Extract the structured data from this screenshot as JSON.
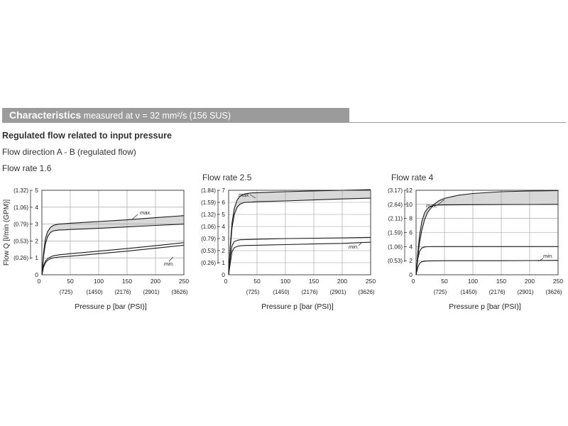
{
  "section": {
    "title_strong": "Characteristics",
    "title_rest": "measured at ν = 32 mm²/s (156 SUS)"
  },
  "subtitle": "Regulated flow related to input pressure",
  "direction": "Flow direction A - B (regulated flow)",
  "colors": {
    "header_bar": "#9b9b9b",
    "band_fill": "#d8d8d8",
    "curve": "#1a1a1a",
    "grid": "#9a9a9a"
  },
  "chart_data": [
    {
      "type": "line",
      "title": "Flow rate 1.6",
      "xlabel": "Pressure p [bar (PSI)]",
      "ylabel": "Flow Q [l/min (GPM)]",
      "xlim": [
        0,
        250
      ],
      "ylim": [
        0,
        5
      ],
      "grid": true,
      "x_ticks": [
        50,
        100,
        150,
        200,
        250
      ],
      "x_ticks_secondary": [
        "(725)",
        "(1450)",
        "(2176)",
        "(2901)",
        "(3626)"
      ],
      "y_ticks": [
        1,
        2,
        3,
        4,
        5
      ],
      "y_ticks_secondary": [
        {
          "label": "(0.26)",
          "at": 1
        },
        {
          "label": "(0.53)",
          "at": 2
        },
        {
          "label": "(0.79)",
          "at": 3
        },
        {
          "label": "(1.06)",
          "at": 4
        },
        {
          "label": "(1.32)",
          "at": 5
        }
      ],
      "annotations": [
        "max.",
        "min."
      ],
      "series": [
        {
          "x": [
            0,
            3,
            6,
            10,
            15,
            20,
            25,
            30,
            40,
            50,
            100,
            150,
            200,
            250
          ],
          "y": [
            0,
            1.3,
            2.1,
            2.55,
            2.8,
            2.92,
            2.97,
            3.0,
            3.02,
            3.05,
            3.15,
            3.25,
            3.38,
            3.5
          ]
        },
        {
          "x": [
            0,
            3,
            6,
            10,
            15,
            20,
            25,
            30,
            40,
            50,
            100,
            150,
            200,
            250
          ],
          "y": [
            0,
            1.1,
            1.8,
            2.25,
            2.5,
            2.6,
            2.62,
            2.65,
            2.66,
            2.68,
            2.75,
            2.83,
            2.92,
            3.0
          ]
        },
        {
          "x": [
            0,
            3,
            6,
            10,
            15,
            20,
            30,
            50,
            100,
            150,
            200,
            250
          ],
          "y": [
            0,
            0.55,
            0.8,
            0.95,
            1.05,
            1.12,
            1.18,
            1.25,
            1.4,
            1.55,
            1.72,
            1.9
          ]
        },
        {
          "x": [
            0,
            3,
            6,
            10,
            15,
            20,
            30,
            50,
            100,
            150,
            200,
            250
          ],
          "y": [
            0,
            0.45,
            0.7,
            0.85,
            0.95,
            1.0,
            1.05,
            1.1,
            1.25,
            1.4,
            1.57,
            1.75
          ]
        }
      ]
    },
    {
      "type": "line",
      "title": "Flow rate 2.5",
      "xlabel": "Pressure p [bar (PSI)]",
      "xlim": [
        0,
        250
      ],
      "ylim": [
        0,
        7
      ],
      "grid": true,
      "x_ticks": [
        50,
        100,
        150,
        200,
        250
      ],
      "x_ticks_secondary": [
        "(725)",
        "(1450)",
        "(2176)",
        "(2901)",
        "(3626)"
      ],
      "y_ticks": [
        1,
        2,
        3,
        4,
        5,
        6,
        7
      ],
      "y_ticks_secondary": [
        {
          "label": "(0.26)",
          "at": 1
        },
        {
          "label": "(0.53)",
          "at": 2
        },
        {
          "label": "(0.79)",
          "at": 3
        },
        {
          "label": "(1.06)",
          "at": 4
        },
        {
          "label": "(1.32)",
          "at": 5
        },
        {
          "label": "(1.59)",
          "at": 6
        },
        {
          "label": "(1.84)",
          "at": 7
        }
      ],
      "annotations": [
        "max.",
        "min."
      ],
      "series": [
        {
          "x": [
            0,
            3,
            6,
            10,
            15,
            20,
            25,
            30,
            40,
            50,
            100,
            150,
            200,
            250
          ],
          "y": [
            0,
            2.5,
            4.3,
            5.5,
            6.2,
            6.5,
            6.65,
            6.72,
            6.78,
            6.8,
            6.88,
            6.95,
            7.0,
            7.05
          ]
        },
        {
          "x": [
            0,
            3,
            6,
            10,
            15,
            20,
            25,
            30,
            40,
            50,
            100,
            150,
            200,
            250
          ],
          "y": [
            0,
            2.2,
            3.9,
            5.0,
            5.6,
            5.85,
            5.95,
            6.0,
            6.02,
            6.05,
            6.12,
            6.2,
            6.28,
            6.35
          ]
        },
        {
          "x": [
            0,
            3,
            6,
            10,
            15,
            20,
            30,
            50,
            100,
            150,
            200,
            250
          ],
          "y": [
            0,
            1.6,
            2.4,
            2.75,
            2.85,
            2.9,
            2.92,
            2.95,
            3.0,
            3.03,
            3.06,
            3.1
          ]
        },
        {
          "x": [
            0,
            3,
            6,
            10,
            15,
            20,
            30,
            50,
            100,
            150,
            200,
            250
          ],
          "y": [
            0,
            1.0,
            1.9,
            2.25,
            2.35,
            2.4,
            2.43,
            2.45,
            2.5,
            2.55,
            2.6,
            2.7
          ]
        }
      ]
    },
    {
      "type": "line",
      "title": "Flow rate 4",
      "xlabel": "Pressure p [bar (PSI)]",
      "xlim": [
        0,
        250
      ],
      "ylim": [
        0,
        12
      ],
      "grid": true,
      "x_ticks": [
        50,
        100,
        150,
        200,
        250
      ],
      "x_ticks_secondary": [
        "(725)",
        "(1450)",
        "(2176)",
        "(2901)",
        "(3626)"
      ],
      "y_ticks": [
        2,
        4,
        6,
        8,
        10,
        12
      ],
      "y_ticks_secondary": [
        {
          "label": "(0.53)",
          "at": 2
        },
        {
          "label": "(1.06)",
          "at": 4
        },
        {
          "label": "(1.59)",
          "at": 6
        },
        {
          "label": "(2.11)",
          "at": 8
        },
        {
          "label": "(2.64)",
          "at": 10
        },
        {
          "label": "(3.17)",
          "at": 12
        }
      ],
      "annotations": [
        "max.",
        "min."
      ],
      "series": [
        {
          "x": [
            0,
            3,
            6,
            10,
            15,
            20,
            30,
            40,
            50,
            75,
            100,
            150,
            200,
            250
          ],
          "y": [
            0,
            2.5,
            4.5,
            6.3,
            7.8,
            8.8,
            9.9,
            10.5,
            10.85,
            11.3,
            11.55,
            11.8,
            11.9,
            11.95
          ]
        },
        {
          "x": [
            0,
            3,
            6,
            10,
            15,
            20,
            25,
            30,
            40,
            50,
            100,
            150,
            200,
            250
          ],
          "y": [
            0,
            3.0,
            5.5,
            7.5,
            8.8,
            9.4,
            9.7,
            9.82,
            9.9,
            9.92,
            9.95,
            9.97,
            9.98,
            10.0
          ]
        },
        {
          "x": [
            0,
            3,
            6,
            10,
            15,
            20,
            30,
            50,
            100,
            150,
            200,
            250
          ],
          "y": [
            0,
            2.2,
            3.3,
            3.8,
            3.95,
            3.98,
            4.0,
            4.0,
            4.0,
            4.0,
            4.0,
            4.0
          ]
        },
        {
          "x": [
            0,
            3,
            6,
            10,
            15,
            20,
            30,
            50,
            100,
            150,
            200,
            250
          ],
          "y": [
            0,
            1.0,
            1.6,
            1.85,
            1.93,
            1.96,
            1.98,
            2.0,
            2.0,
            2.0,
            2.02,
            2.05
          ]
        }
      ]
    }
  ]
}
